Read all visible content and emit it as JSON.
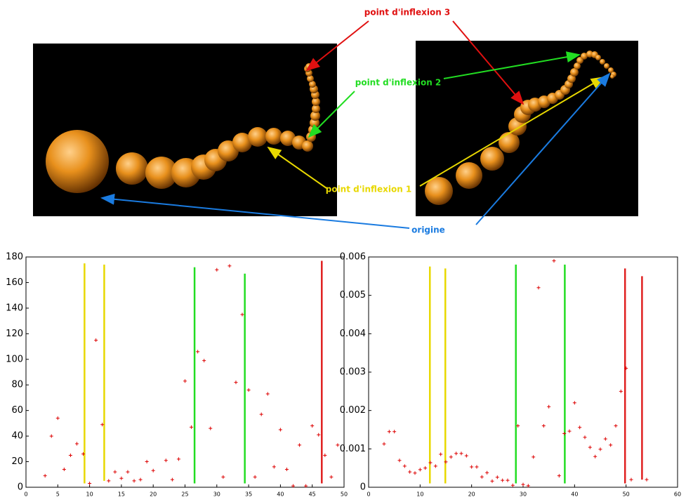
{
  "figure": {
    "annotations": [
      "point d'inflexion 3",
      "point d'inflexion 2",
      "point d'inflexion 1",
      "origine"
    ]
  },
  "chart_data": [
    {
      "type": "scatter",
      "color": "#dd0000",
      "x": [
        3,
        4,
        5,
        6,
        7,
        8,
        9,
        10,
        11,
        12,
        13,
        14,
        15,
        16,
        17,
        18,
        19,
        20,
        22,
        23,
        24,
        25,
        26,
        27,
        28,
        29,
        30,
        31,
        32,
        33,
        34,
        35,
        36,
        37,
        38,
        39,
        40,
        41,
        42,
        43,
        44,
        45,
        46,
        47,
        48,
        49
      ],
      "values": [
        9,
        40,
        54,
        14,
        25,
        34,
        26,
        3,
        115,
        49,
        5,
        12,
        7,
        12,
        5,
        6,
        20,
        13,
        21,
        6,
        22,
        83,
        47,
        106,
        99,
        46,
        170,
        8,
        173,
        82,
        135,
        76,
        8,
        57,
        73,
        16,
        45,
        14,
        1,
        33,
        1,
        48,
        41,
        25,
        8,
        33
      ],
      "xlim": [
        0,
        50
      ],
      "xticks": [
        0,
        5,
        10,
        15,
        20,
        25,
        30,
        35,
        40,
        45,
        50
      ],
      "ylim": [
        0,
        180
      ],
      "yticks": [
        0,
        20,
        40,
        60,
        80,
        100,
        120,
        140,
        160,
        180
      ],
      "lines": [
        {
          "x": 9.2,
          "y": [
            3,
            175
          ],
          "color": "#e8d800"
        },
        {
          "x": 12.3,
          "y": [
            5,
            174
          ],
          "color": "#e8d800"
        },
        {
          "x": 26.5,
          "y": [
            3,
            172
          ],
          "color": "#22dd22"
        },
        {
          "x": 34.4,
          "y": [
            3,
            167
          ],
          "color": "#22dd22"
        },
        {
          "x": 46.5,
          "y": [
            3,
            177
          ],
          "color": "#e02020"
        }
      ]
    },
    {
      "type": "scatter",
      "color": "#dd0000",
      "x": [
        3,
        4,
        5,
        6,
        7,
        8,
        9,
        10,
        11,
        12,
        13,
        14,
        15,
        16,
        17,
        18,
        19,
        20,
        21,
        22,
        23,
        24,
        25,
        26,
        27,
        28,
        29,
        30,
        31,
        32,
        33,
        34,
        35,
        36,
        37,
        38,
        39,
        40,
        41,
        42,
        43,
        44,
        45,
        46,
        47,
        48,
        49,
        50,
        51,
        54
      ],
      "values": [
        0.00113,
        0.00145,
        0.00145,
        0.0007,
        0.00055,
        0.0004,
        0.00037,
        0.00046,
        0.0005,
        0.00064,
        0.00055,
        0.00086,
        0.00066,
        0.00079,
        0.00088,
        0.00088,
        0.00082,
        0.00053,
        0.00053,
        0.00027,
        0.00038,
        0.00016,
        0.00026,
        0.00018,
        0.00018,
        5e-05,
        0.0016,
        7e-05,
        4e-05,
        0.00079,
        0.0052,
        0.0016,
        0.0021,
        0.0059,
        0.0003,
        0.0014,
        0.00146,
        0.0022,
        0.00156,
        0.0013,
        0.00104,
        0.0008,
        0.00099,
        0.00126,
        0.0011,
        0.0016,
        0.0025,
        0.0031,
        0.0002,
        0.0002
      ],
      "xlim": [
        0,
        60
      ],
      "xticks": [
        0,
        10,
        20,
        30,
        40,
        50,
        60
      ],
      "ylim": [
        0,
        0.006
      ],
      "yticks": [
        0,
        0.001,
        0.002,
        0.003,
        0.004,
        0.005,
        0.006
      ],
      "lines": [
        {
          "x": 11.9,
          "y": [
            0.0001,
            0.00575
          ],
          "color": "#e8d800"
        },
        {
          "x": 14.9,
          "y": [
            0.0001,
            0.0057
          ],
          "color": "#e8d800"
        },
        {
          "x": 28.6,
          "y": [
            0.0001,
            0.0058
          ],
          "color": "#22dd22"
        },
        {
          "x": 38.1,
          "y": [
            0.0001,
            0.0058
          ],
          "color": "#22dd22"
        },
        {
          "x": 49.8,
          "y": [
            0.0001,
            0.0057
          ],
          "color": "#e02020"
        },
        {
          "x": 53.1,
          "y": [
            0.0002,
            0.0055
          ],
          "color": "#e02020"
        }
      ]
    }
  ]
}
